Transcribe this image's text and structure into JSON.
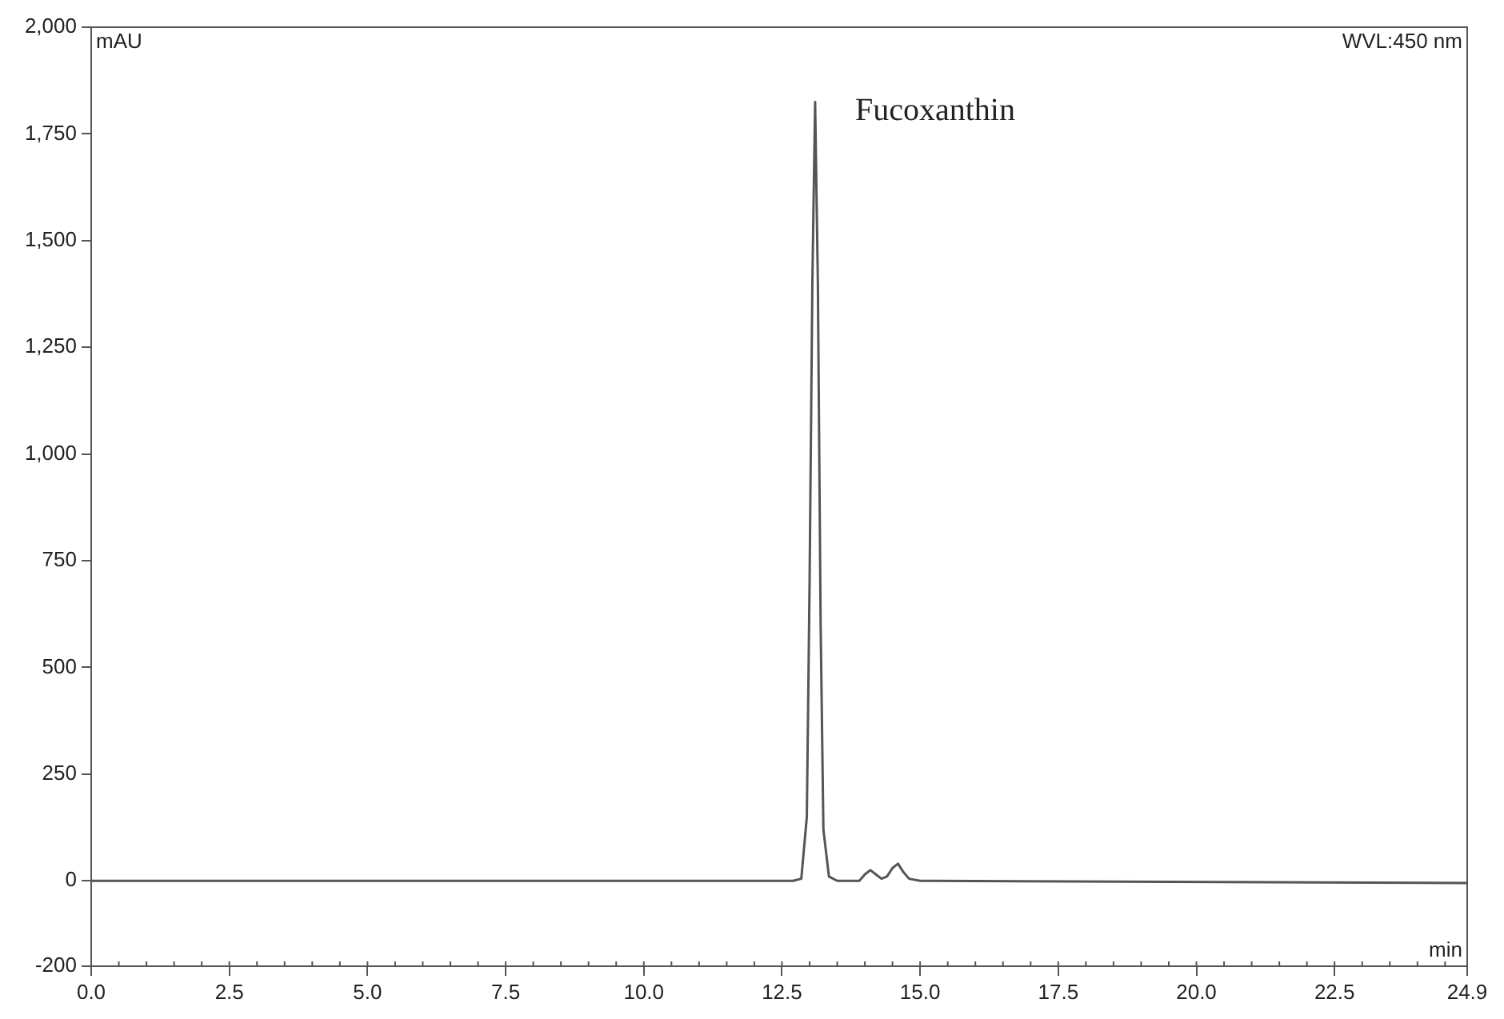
{
  "chart_data": {
    "type": "line",
    "xlabel": "min",
    "ylabel": "mAU",
    "x": [
      0,
      6.4,
      6.5,
      7.2,
      12.7,
      12.85,
      12.95,
      13.0,
      13.05,
      13.1,
      13.15,
      13.2,
      13.25,
      13.35,
      13.5,
      13.9,
      14.0,
      14.1,
      14.2,
      14.3,
      14.4,
      14.5,
      14.6,
      14.7,
      14.8,
      15.0,
      15.2,
      24.9
    ],
    "series": [
      {
        "color": "#50565c",
        "values": [
          0,
          0,
          0,
          0,
          0,
          5,
          150,
          700,
          1400,
          1825,
          1400,
          600,
          120,
          10,
          0,
          0,
          15,
          25,
          15,
          5,
          10,
          30,
          40,
          20,
          5,
          0,
          0,
          -5
        ]
      }
    ],
    "xlim": [
      0,
      24.9
    ],
    "ylim": [
      -200,
      2000
    ],
    "xticks": [
      {
        "value": 0,
        "label": "0.0"
      },
      2.5,
      {
        "value": 5,
        "label": "5.0"
      },
      7.5,
      {
        "value": 10,
        "label": "10.0"
      },
      12.5,
      {
        "value": 15,
        "label": "15.0"
      },
      17.5,
      {
        "value": 20,
        "label": "20.0"
      },
      22.5,
      24.9
    ],
    "yticks": [
      -200,
      0,
      250,
      500,
      750,
      {
        "value": 1000,
        "label": "1,000"
      },
      {
        "value": 1250,
        "label": "1,250"
      },
      {
        "value": 1500,
        "label": "1,500"
      },
      {
        "value": 1750,
        "label": "1,750"
      },
      {
        "value": 2000,
        "label": "2,000"
      }
    ],
    "annotations": [
      "WVL:450 nm",
      {
        "text": "Fucoxanthin",
        "x": 13.1,
        "y": 1825
      }
    ],
    "grid": false,
    "legend": false,
    "marker": "none",
    "line_style": "solid"
  }
}
